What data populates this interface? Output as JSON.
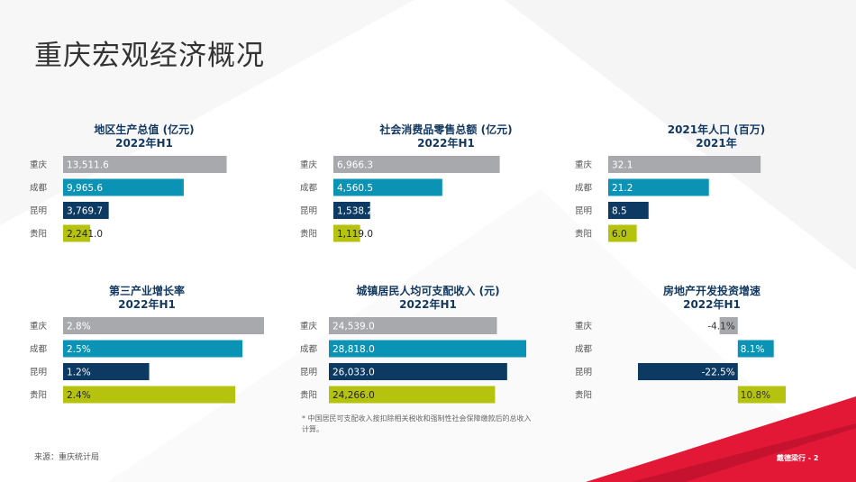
{
  "page": {
    "title": "重庆宏观经济概况",
    "source": "来源：重庆统计局",
    "footnote": "* 中国居民可支配收入按扣除相关税收和强制性社会保障缴款后的总收入计算。",
    "firm": "戴德梁行 - 2",
    "accent_color": "#e31837"
  },
  "chart_data": [
    {
      "type": "bar",
      "title": "地区生产总值 (亿元)",
      "subtitle": "2022年H1",
      "categories": [
        "重庆",
        "成都",
        "昆明",
        "贵阳"
      ],
      "values": [
        13511.6,
        9965.6,
        3769.7,
        2241.0
      ],
      "labels": [
        "13,511.6",
        "9,965.6",
        "3,769.7",
        "2,241.0"
      ],
      "colors": [
        "#a7a9ac",
        "#0a93b5",
        "#0d3a63",
        "#b5c30f"
      ],
      "xlim": [
        0,
        16000
      ]
    },
    {
      "type": "bar",
      "title": "社会消费品零售总额 (亿元)",
      "subtitle": "2022年H1",
      "categories": [
        "重庆",
        "成都",
        "昆明",
        "贵阳"
      ],
      "values": [
        6966.3,
        4560.5,
        1538.2,
        1119.0
      ],
      "labels": [
        "6,966.3",
        "4,560.5",
        "1,538.2",
        "1,119.0"
      ],
      "colors": [
        "#a7a9ac",
        "#0a93b5",
        "#0d3a63",
        "#b5c30f"
      ],
      "xlim": [
        0,
        8000
      ]
    },
    {
      "type": "bar",
      "title": "2021年人口 (百万)",
      "subtitle": "2021年",
      "categories": [
        "重庆",
        "成都",
        "昆明",
        "贵阳"
      ],
      "values": [
        32.1,
        21.2,
        8.5,
        6.0
      ],
      "labels": [
        "32.1",
        "21.2",
        "8.5",
        "6.0"
      ],
      "colors": [
        "#a7a9ac",
        "#0a93b5",
        "#0d3a63",
        "#b5c30f"
      ],
      "xlim": [
        0,
        37
      ]
    },
    {
      "type": "bar",
      "title": "第三产业增长率",
      "subtitle": "2022年H1",
      "categories": [
        "重庆",
        "成都",
        "昆明",
        "贵阳"
      ],
      "values": [
        2.8,
        2.5,
        1.2,
        2.4
      ],
      "labels": [
        "2.8%",
        "2.5%",
        "1.2%",
        "2.4%"
      ],
      "colors": [
        "#a7a9ac",
        "#0a93b5",
        "#0d3a63",
        "#b5c30f"
      ],
      "xlim": [
        0,
        2.8
      ]
    },
    {
      "type": "bar",
      "title": "城镇居民人均可支配收入 (元)",
      "subtitle": "2022年H1",
      "categories": [
        "重庆",
        "成都",
        "昆明",
        "贵阳"
      ],
      "values": [
        24539.0,
        28818.0,
        26033.0,
        24266.0
      ],
      "labels": [
        "24,539.0",
        "28,818.0",
        "26,033.0",
        "24,266.0"
      ],
      "colors": [
        "#a7a9ac",
        "#0a93b5",
        "#0d3a63",
        "#b5c30f"
      ],
      "xlim": [
        0,
        28818
      ]
    },
    {
      "type": "bar",
      "title": "房地产开发投资增速",
      "subtitle": "2022年H1",
      "categories": [
        "重庆",
        "成都",
        "昆明",
        "贵阳"
      ],
      "values": [
        -4.1,
        8.1,
        -22.5,
        10.8
      ],
      "labels": [
        "-4.1%",
        "8.1%",
        "-22.5%",
        "10.8%"
      ],
      "colors": [
        "#a7a9ac",
        "#0a93b5",
        "#0d3a63",
        "#b5c30f"
      ],
      "xlim": [
        -22.5,
        10.8
      ]
    }
  ]
}
